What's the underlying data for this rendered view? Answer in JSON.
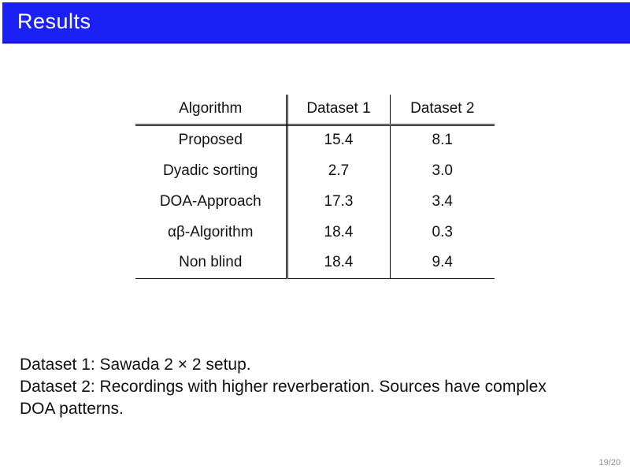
{
  "slide": {
    "title": "Results",
    "page_indicator": "19/20"
  },
  "table": {
    "columns": [
      "Algorithm",
      "Dataset 1",
      "Dataset 2"
    ],
    "rows": [
      {
        "algorithm": "Proposed",
        "dataset1": "15.4",
        "dataset2": "8.1"
      },
      {
        "algorithm": "Dyadic sorting",
        "dataset1": "2.7",
        "dataset2": "3.0"
      },
      {
        "algorithm": "DOA-Approach",
        "dataset1": "17.3",
        "dataset2": "3.4"
      },
      {
        "algorithm": "αβ-Algorithm",
        "dataset1": "18.4",
        "dataset2": "0.3"
      },
      {
        "algorithm": "Non blind",
        "dataset1": "18.4",
        "dataset2": "9.4"
      }
    ]
  },
  "notes": [
    "Dataset 1: Sawada 2 × 2 setup.",
    "Dataset 2: Recordings with higher reverberation. Sources have complex DOA patterns."
  ],
  "colors": {
    "title_bar_bg": "#1b21f5",
    "title_bar_border": "#1517b8",
    "title_text": "#ffffff",
    "table_rule": "#000000",
    "page_number_text": "#909090"
  }
}
